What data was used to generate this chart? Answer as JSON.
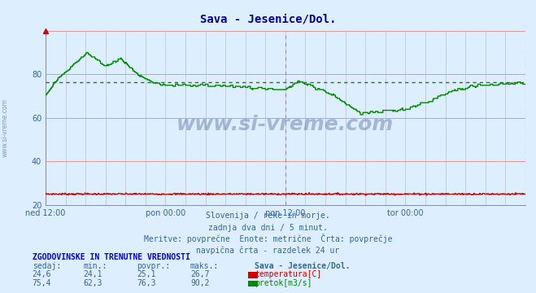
{
  "title": "Sava - Jesenice/Dol.",
  "title_color": "#00008B",
  "background_color": "#ddeeff",
  "plot_bg_color": "#ddeeff",
  "xlim": [
    0,
    576
  ],
  "ylim": [
    20,
    100
  ],
  "yticks": [
    20,
    40,
    60,
    80
  ],
  "ytick_labels": [
    "20",
    "40",
    "60",
    "80"
  ],
  "xtick_positions": [
    0,
    144,
    288,
    432,
    576
  ],
  "xtick_labels": [
    "ned 12:00",
    "pon 00:00",
    "pon 12:00",
    "tor 00:00",
    ""
  ],
  "hgrid_color": "#dd9999",
  "vgrid_color": "#bbbbdd",
  "vline_positions": [
    288,
    576
  ],
  "vline_color": "#ff44ff",
  "temp_avg": 25.1,
  "flow_avg": 76.3,
  "temp_color": "#cc0000",
  "flow_color": "#008800",
  "watermark": "www.si-vreme.com",
  "watermark_color": "#1a3a6e",
  "sidebar_text": "www.si-vreme.com",
  "subtitle1": "Slovenija / reke in morje.",
  "subtitle2": "zadnja dva dni / 5 minut.",
  "subtitle3": "Meritve: povprečne  Enote: metrične  Črta: povprečje",
  "subtitle4": "navpična črta - razdelek 24 ur",
  "table_header": "ZGODOVINSKE IN TRENUTNE VREDNOSTI",
  "col_headers": [
    "sedaj:",
    "min.:",
    "povpr.:",
    "maks.:",
    "Sava - Jesenice/Dol."
  ],
  "temp_row": [
    "24,6",
    "24,1",
    "25,1",
    "26,7",
    "temperatura[C]"
  ],
  "flow_row": [
    "75,4",
    "62,3",
    "76,3",
    "90,2",
    "pretok[m3/s]"
  ]
}
